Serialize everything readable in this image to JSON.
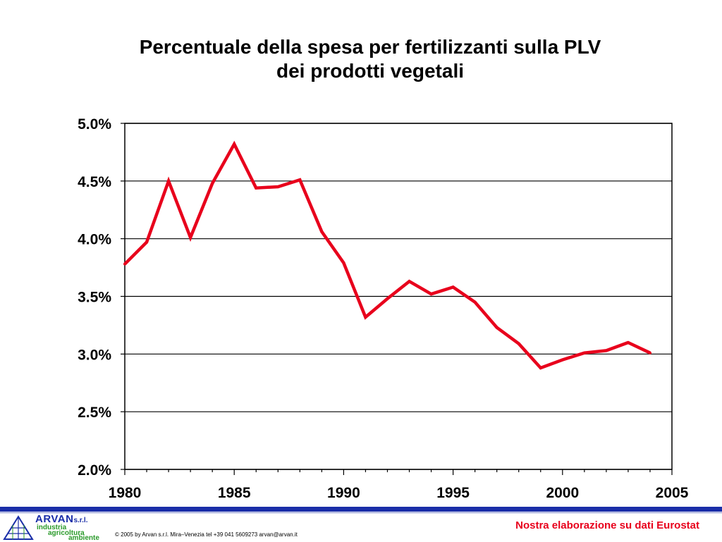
{
  "chart_data": {
    "type": "line",
    "title_line1": "Percentuale della spesa per fertilizzanti sulla PLV",
    "title_line2": "dei prodotti vegetali",
    "xlim": [
      1980,
      2005
    ],
    "ylim": [
      0.02,
      0.05
    ],
    "x_ticks": [
      1980,
      1985,
      1990,
      1995,
      2000,
      2005
    ],
    "y_ticks": [
      0.02,
      0.025,
      0.03,
      0.035,
      0.04,
      0.045,
      0.05
    ],
    "x_tick_labels": [
      "1980",
      "1985",
      "1990",
      "1995",
      "2000",
      "2005"
    ],
    "y_tick_labels": [
      "2.0%",
      "2.5%",
      "3.0%",
      "3.5%",
      "4.0%",
      "4.5%",
      "5.0%"
    ],
    "grid": "horizontal",
    "line_color": "#e8001c",
    "series": [
      {
        "x": [
          1980,
          1981,
          1982,
          1983,
          1984,
          1985,
          1986,
          1987,
          1988,
          1989,
          1990,
          1991,
          1992,
          1993,
          1994,
          1995,
          1996,
          1997,
          1998,
          1999,
          2000,
          2001,
          2002,
          2003,
          2004
        ],
        "values": [
          0.0378,
          0.0397,
          0.045,
          0.0401,
          0.0448,
          0.0482,
          0.0444,
          0.0445,
          0.0451,
          0.0406,
          0.0379,
          0.0332,
          0.0348,
          0.0363,
          0.0352,
          0.0358,
          0.0345,
          0.0323,
          0.0309,
          0.0288,
          0.0295,
          0.0301,
          0.0303,
          0.031,
          0.0301
        ]
      }
    ]
  },
  "footer": {
    "brand_name": "ARVAN",
    "brand_suffix": "s.r.l.",
    "brand_line1": "industria",
    "brand_line2": "agricoltura",
    "brand_line3": "ambiente",
    "copyright": "© 2005 by Arvan s.r.l. Mira–Venezia tel +39 041 5609273 arvan@arvan.it",
    "source": "Nostra elaborazione su dati Eurostat",
    "accent_color": "#1a2ea8",
    "source_color": "#e8001c"
  }
}
